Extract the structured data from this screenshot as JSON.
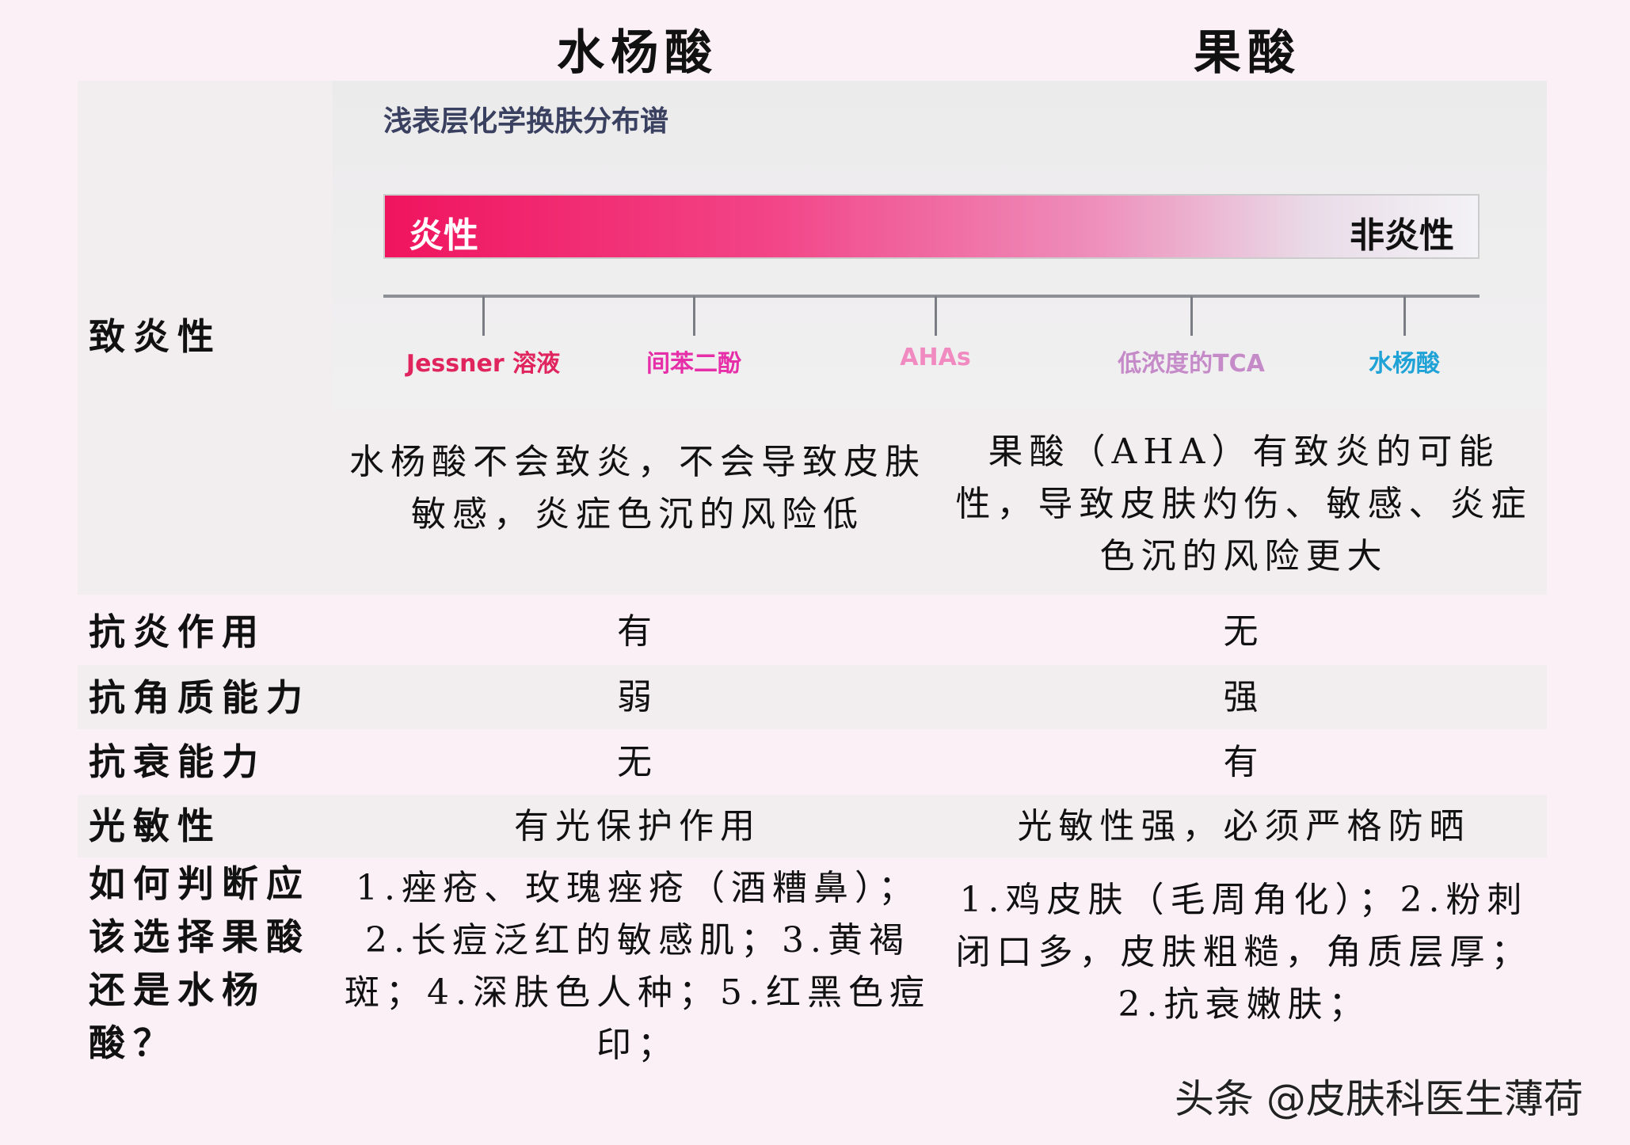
{
  "headers": {
    "salicylic": "水杨酸",
    "fruit": "果酸"
  },
  "spectrum": {
    "title": "浅表层化学换肤分布谱",
    "left_label": "炎性",
    "right_label": "非炎性",
    "ticks": [
      {
        "label": "Jessner 溶液",
        "color": "#e0245e"
      },
      {
        "label": "间苯二酚",
        "color": "#e62ea8"
      },
      {
        "label": "AHAs",
        "color": "#f08ac0"
      },
      {
        "label": "低浓度的TCA",
        "color": "#c58ac8"
      },
      {
        "label": "水杨酸",
        "color": "#1fa3d6"
      }
    ]
  },
  "rows": [
    {
      "label": "致炎性",
      "salicylic": "水杨酸不会致炎，不会导致皮肤敏感，炎症色沉的风险低",
      "fruit": "果酸（AHA）有致炎的可能性，导致皮肤灼伤、敏感、炎症色沉的风险更大"
    },
    {
      "label": "抗炎作用",
      "salicylic": "有",
      "fruit": "无"
    },
    {
      "label": "抗角质能力",
      "salicylic": "弱",
      "fruit": "强"
    },
    {
      "label": "抗衰能力",
      "salicylic": "无",
      "fruit": "有"
    },
    {
      "label": "光敏性",
      "salicylic": "有光保护作用",
      "fruit": "光敏性强，必须严格防晒"
    },
    {
      "label": "如何判断应该选择果酸还是水杨酸？",
      "salicylic": "1.痤疮、玫瑰痤疮（酒糟鼻）；2.长痘泛红的敏感肌；3.黄褐斑；4.深肤色人种；5.红黑色痘印；",
      "fruit": "1.鸡皮肤（毛周角化）；2.粉刺闭口多，皮肤粗糙，角质层厚；2.抗衰嫩肤；"
    }
  ],
  "watermark": "头条 @皮肤科医生薄荷"
}
